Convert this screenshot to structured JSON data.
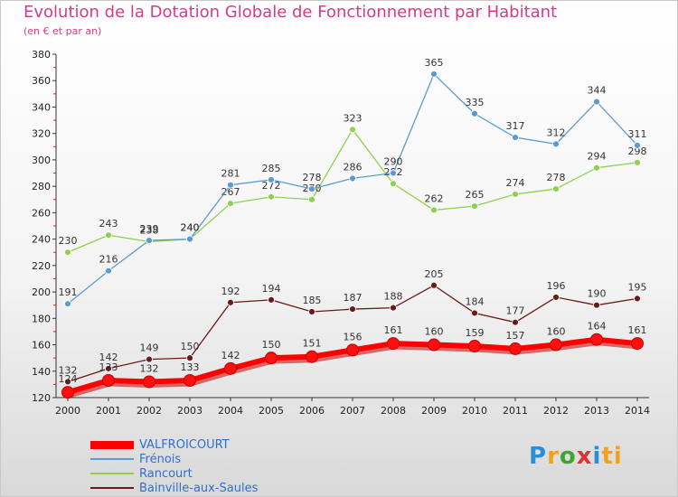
{
  "title": "Evolution de la Dotation Globale de Fonctionnement par Habitant",
  "subtitle": "(en € et par an)",
  "logo": {
    "letters": [
      "P",
      "r",
      "o",
      "x",
      "i",
      "ti"
    ]
  },
  "chart_data": {
    "type": "line",
    "categories": [
      "2000",
      "2001",
      "2002",
      "2003",
      "2004",
      "2005",
      "2006",
      "2007",
      "2008",
      "2009",
      "2010",
      "2011",
      "2012",
      "2013",
      "2014"
    ],
    "ylim": [
      120,
      380
    ],
    "yticks": [
      120,
      140,
      160,
      180,
      200,
      220,
      240,
      260,
      280,
      300,
      320,
      340,
      360,
      380
    ],
    "grid": false,
    "legend_position": "bottom-left",
    "series": [
      {
        "name": "Bainville-aux-Saules",
        "color": "#6b1a1a",
        "values": [
          132,
          142,
          149,
          150,
          192,
          194,
          185,
          187,
          188,
          205,
          184,
          177,
          196,
          190,
          195
        ]
      },
      {
        "name": "Rancourt",
        "color": "#8fd14f",
        "values": [
          230,
          243,
          238,
          240,
          267,
          272,
          270,
          323,
          282,
          262,
          265,
          274,
          278,
          294,
          298
        ]
      },
      {
        "name": "Frénois",
        "color": "#5b9bd5",
        "values": [
          191,
          216,
          239,
          240,
          281,
          285,
          278,
          286,
          290,
          365,
          335,
          317,
          312,
          344,
          311
        ]
      },
      {
        "name": "VALFROICOURT",
        "color": "#ff0000",
        "values": [
          124,
          133,
          132,
          133,
          142,
          150,
          151,
          156,
          161,
          160,
          159,
          157,
          160,
          164,
          161
        ]
      }
    ],
    "legend_order": [
      "VALFROICOURT",
      "Frénois",
      "Rancourt",
      "Bainville-aux-Saules"
    ]
  }
}
